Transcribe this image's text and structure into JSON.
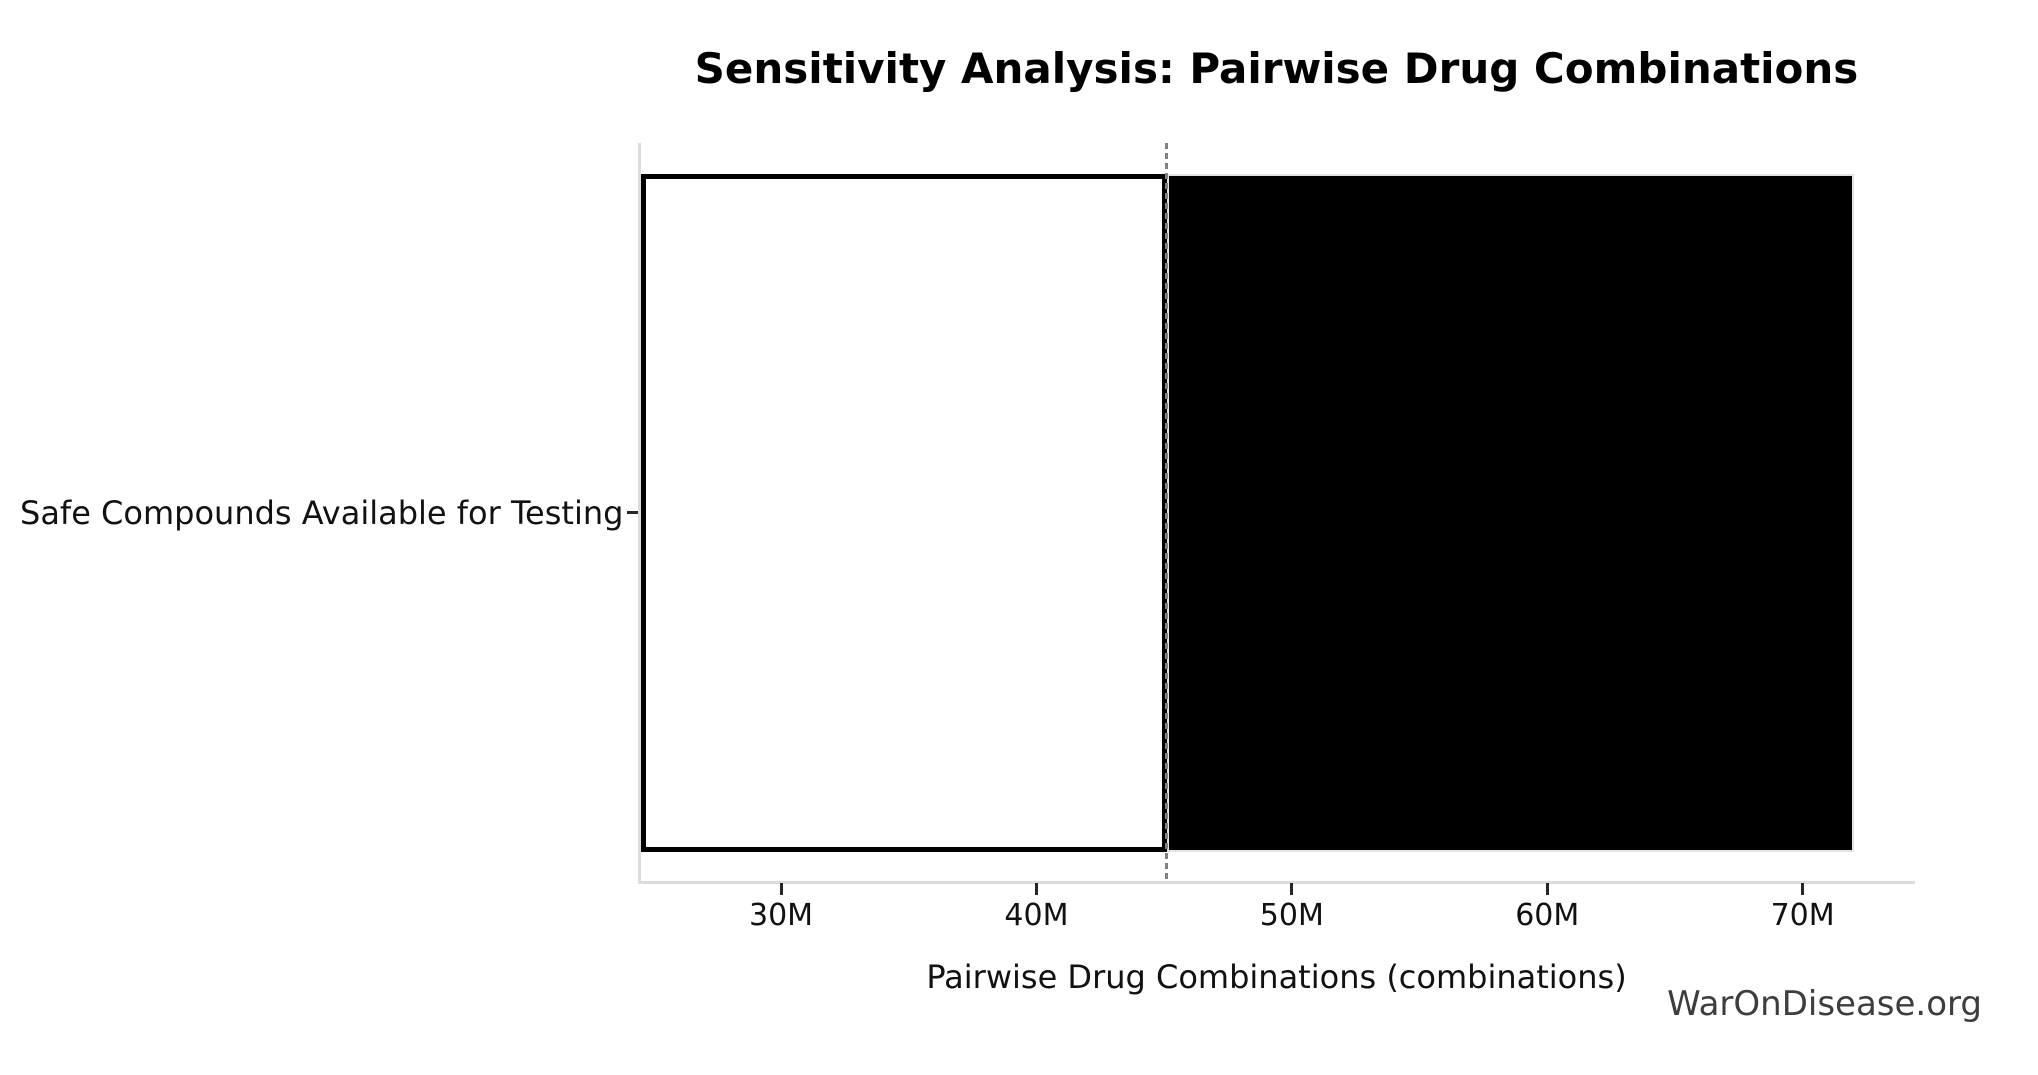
{
  "title": "Sensitivity Analysis: Pairwise Drug Combinations",
  "watermark": "WarOnDisease.org",
  "axes": {
    "x_label": "Pairwise Drug Combinations (combinations)",
    "y_category": "Safe Compounds Available for Testing"
  },
  "chart_data": {
    "type": "bar",
    "subtype": "tornado-sensitivity",
    "orientation": "horizontal",
    "title": "Sensitivity Analysis: Pairwise Drug Combinations",
    "xlabel": "Pairwise Drug Combinations (combinations)",
    "ylabel": "",
    "categories": [
      "Safe Compounds Available for Testing"
    ],
    "base_value": 45100000,
    "series": [
      {
        "name": "low-side-range",
        "from": 24500000,
        "to": 45100000,
        "fill": "#ffffff",
        "edge": "#000000"
      },
      {
        "name": "high-side-range",
        "from": 45100000,
        "to": 72000000,
        "fill": "#000000",
        "edge": "#e3e3e3"
      }
    ],
    "x_ticks": [
      {
        "value": 30000000,
        "label": "30M"
      },
      {
        "value": 40000000,
        "label": "40M"
      },
      {
        "value": 50000000,
        "label": "50M"
      },
      {
        "value": 60000000,
        "label": "60M"
      },
      {
        "value": 70000000,
        "label": "70M"
      }
    ],
    "xlim": [
      24400000,
      74400000
    ],
    "grid": false,
    "legend": false,
    "reference_line": {
      "value": 45100000,
      "style": "dashed",
      "color": "#808080"
    }
  },
  "colors": {
    "spine": "#dcdcdc",
    "tick": "#262626",
    "text": "#111111",
    "title": "#000000",
    "watermark_text": "#3d3d3d",
    "reference": "#808080",
    "bar_low_fill": "#ffffff",
    "bar_low_edge": "#000000",
    "bar_high_fill": "#000000",
    "bar_high_edge": "#e3e3e3"
  }
}
